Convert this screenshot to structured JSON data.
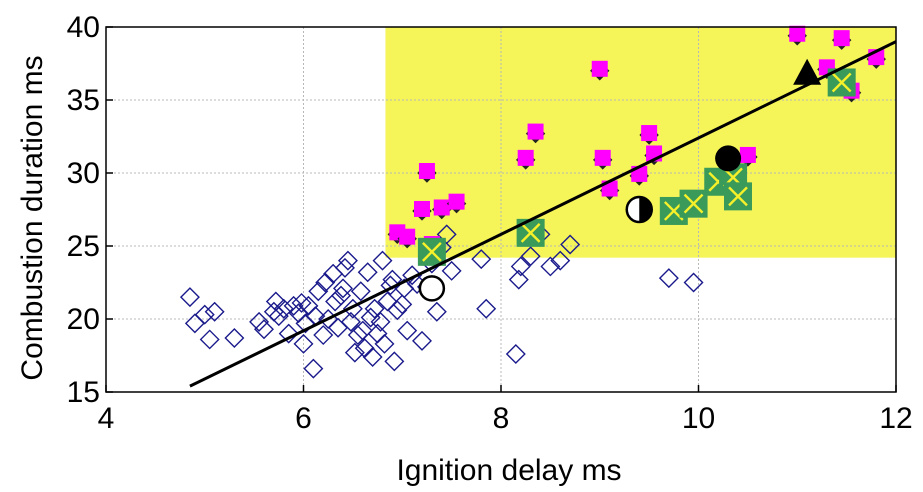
{
  "chart_data": {
    "type": "scatter",
    "title": "",
    "xlabel": "Ignition delay  ms",
    "ylabel": "Combustion duration ms",
    "xlim": [
      4,
      12
    ],
    "ylim": [
      15,
      40
    ],
    "xticks": [
      4,
      6,
      8,
      10,
      12
    ],
    "yticks": [
      15,
      20,
      25,
      30,
      35,
      40
    ],
    "xtick_labels": [
      "4",
      "6",
      "8",
      "10",
      "12"
    ],
    "ytick_labels": [
      "15",
      "20",
      "25",
      "30",
      "35",
      "40"
    ],
    "grid": true,
    "highlight_region": {
      "x": [
        6.83,
        12
      ],
      "y": [
        24.2,
        40
      ],
      "color": "#f5f55a"
    },
    "colors": {
      "diamond": "#1a1a8c",
      "magenta": "#ff00ff",
      "green": "#3a9a5a",
      "cross": "#f5f02a",
      "fit_line": "#000000"
    },
    "series": [
      {
        "marker": "diamond",
        "x": [
          4.85,
          4.9,
          5.0,
          5.05,
          5.1,
          5.3,
          5.55,
          5.6,
          5.7,
          5.72,
          5.75,
          5.8,
          5.85,
          5.9,
          5.95,
          5.98,
          6.0,
          6.02,
          6.05,
          6.1,
          6.12,
          6.15,
          6.2,
          6.22,
          6.25,
          6.3,
          6.32,
          6.35,
          6.38,
          6.4,
          6.42,
          6.45,
          6.48,
          6.5,
          6.52,
          6.55,
          6.58,
          6.6,
          6.62,
          6.65,
          6.68,
          6.7,
          6.72,
          6.75,
          6.78,
          6.8,
          6.82,
          6.85,
          6.88,
          6.9,
          6.92,
          6.95,
          7.0,
          7.02,
          7.05,
          7.1,
          7.15,
          7.2,
          7.25,
          7.3,
          7.35,
          7.4,
          7.45,
          7.5,
          7.8,
          7.85,
          8.15,
          8.18,
          8.2,
          8.3,
          8.4,
          8.5,
          8.6,
          8.7,
          9.7,
          9.95
        ],
        "y": [
          21.5,
          19.7,
          20.3,
          18.6,
          20.5,
          18.7,
          19.8,
          19.3,
          20.5,
          21.2,
          20.2,
          20.7,
          19.0,
          20.9,
          20.4,
          21.1,
          18.3,
          19.7,
          20.9,
          16.6,
          20.2,
          21.9,
          18.9,
          22.5,
          20.0,
          23.1,
          21.2,
          19.4,
          21.6,
          22.1,
          23.5,
          24.0,
          19.8,
          20.7,
          17.7,
          18.9,
          21.9,
          19.2,
          18.0,
          23.2,
          20.1,
          17.4,
          20.7,
          19.0,
          19.8,
          24.0,
          18.3,
          21.2,
          22.3,
          22.7,
          17.1,
          20.6,
          21.0,
          22.1,
          19.2,
          23.0,
          22.4,
          18.5,
          22.2,
          23.8,
          20.5,
          24.9,
          25.8,
          23.3,
          24.1,
          20.7,
          17.6,
          22.7,
          23.6,
          24.3,
          25.8,
          23.6,
          24.0,
          25.1,
          22.8,
          22.5
        ]
      },
      {
        "marker": "magenta-square",
        "x": [
          6.95,
          7.05,
          7.2,
          7.25,
          7.3,
          7.4,
          7.55,
          8.25,
          8.35,
          9.0,
          9.03,
          9.1,
          9.4,
          9.5,
          9.55,
          10.5,
          11.0,
          11.3,
          11.45,
          11.55,
          11.8
        ],
        "y": [
          25.8,
          25.5,
          27.4,
          30.0,
          25.0,
          27.5,
          27.9,
          30.9,
          32.7,
          37.0,
          30.9,
          28.8,
          29.8,
          32.6,
          31.2,
          31.1,
          39.4,
          37.1,
          39.1,
          35.5,
          37.8
        ]
      },
      {
        "marker": "green-square-cross",
        "x": [
          7.3,
          8.3,
          9.75,
          9.95,
          10.2,
          10.35,
          10.4,
          11.45
        ],
        "y": [
          24.6,
          25.9,
          27.4,
          27.9,
          29.4,
          29.7,
          28.4,
          36.2
        ]
      },
      {
        "marker": "open-circle",
        "x": [
          7.3
        ],
        "y": [
          22.1
        ]
      },
      {
        "marker": "half-circle",
        "x": [
          9.4
        ],
        "y": [
          27.5
        ]
      },
      {
        "marker": "filled-circle",
        "x": [
          10.3
        ],
        "y": [
          31.0
        ]
      },
      {
        "marker": "filled-triangle",
        "x": [
          11.1
        ],
        "y": [
          36.8
        ]
      }
    ],
    "fit_line": {
      "x": [
        4.85,
        12.0
      ],
      "y": [
        15.4,
        39.0
      ]
    }
  }
}
